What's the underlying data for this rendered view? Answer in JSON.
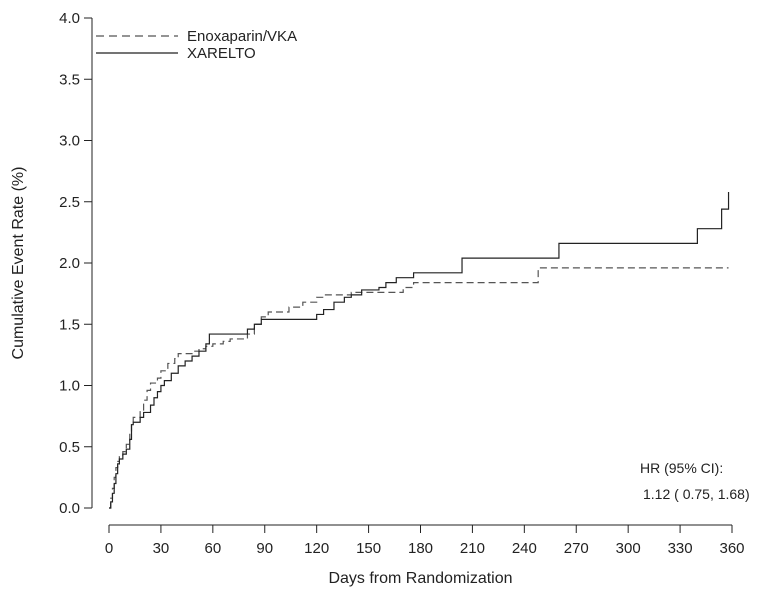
{
  "chart_data": {
    "type": "line",
    "xlabel": "Days from Randomization",
    "ylabel": "Cumulative Event Rate (%)",
    "xlim": [
      0,
      360
    ],
    "ylim": [
      0,
      4.0
    ],
    "xticks": [
      0,
      30,
      60,
      90,
      120,
      150,
      180,
      210,
      240,
      270,
      300,
      330,
      360
    ],
    "yticks": [
      0.0,
      0.5,
      1.0,
      1.5,
      2.0,
      2.5,
      3.0,
      3.5,
      4.0
    ],
    "ytick_labels": [
      "0.0",
      "0.5",
      "1.0",
      "1.5",
      "2.0",
      "2.5",
      "3.0",
      "3.5",
      "4.0"
    ],
    "grid": false,
    "legend_position": "top-left",
    "step_lines": true,
    "series": [
      {
        "name": "Enoxaparin/VKA",
        "line_style": "dashed",
        "color": "#555555",
        "points": [
          [
            0,
            0
          ],
          [
            1,
            0.08
          ],
          [
            2,
            0.16
          ],
          [
            3,
            0.25
          ],
          [
            4,
            0.33
          ],
          [
            5,
            0.38
          ],
          [
            6,
            0.42
          ],
          [
            8,
            0.46
          ],
          [
            10,
            0.52
          ],
          [
            12,
            0.62
          ],
          [
            13,
            0.68
          ],
          [
            14,
            0.74
          ],
          [
            18,
            0.8
          ],
          [
            20,
            0.88
          ],
          [
            22,
            0.96
          ],
          [
            24,
            1.02
          ],
          [
            28,
            1.06
          ],
          [
            30,
            1.12
          ],
          [
            34,
            1.18
          ],
          [
            38,
            1.22
          ],
          [
            40,
            1.26
          ],
          [
            48,
            1.28
          ],
          [
            52,
            1.3
          ],
          [
            56,
            1.32
          ],
          [
            60,
            1.34
          ],
          [
            66,
            1.36
          ],
          [
            70,
            1.38
          ],
          [
            80,
            1.42
          ],
          [
            84,
            1.5
          ],
          [
            88,
            1.56
          ],
          [
            92,
            1.6
          ],
          [
            104,
            1.64
          ],
          [
            112,
            1.68
          ],
          [
            120,
            1.72
          ],
          [
            124,
            1.74
          ],
          [
            140,
            1.76
          ],
          [
            170,
            1.8
          ],
          [
            176,
            1.84
          ],
          [
            248,
            1.96
          ],
          [
            358,
            1.96
          ]
        ]
      },
      {
        "name": "XARELTO",
        "line_style": "solid",
        "color": "#222222",
        "points": [
          [
            0,
            0
          ],
          [
            1,
            0.05
          ],
          [
            2,
            0.12
          ],
          [
            3,
            0.2
          ],
          [
            4,
            0.28
          ],
          [
            5,
            0.36
          ],
          [
            6,
            0.4
          ],
          [
            8,
            0.44
          ],
          [
            10,
            0.48
          ],
          [
            12,
            0.56
          ],
          [
            13,
            0.68
          ],
          [
            14,
            0.7
          ],
          [
            18,
            0.74
          ],
          [
            20,
            0.78
          ],
          [
            24,
            0.84
          ],
          [
            26,
            0.9
          ],
          [
            28,
            0.95
          ],
          [
            30,
            1.0
          ],
          [
            32,
            1.04
          ],
          [
            36,
            1.1
          ],
          [
            40,
            1.16
          ],
          [
            44,
            1.2
          ],
          [
            48,
            1.24
          ],
          [
            52,
            1.28
          ],
          [
            56,
            1.34
          ],
          [
            58,
            1.42
          ],
          [
            80,
            1.46
          ],
          [
            84,
            1.5
          ],
          [
            88,
            1.54
          ],
          [
            120,
            1.58
          ],
          [
            124,
            1.62
          ],
          [
            130,
            1.68
          ],
          [
            136,
            1.72
          ],
          [
            140,
            1.74
          ],
          [
            146,
            1.78
          ],
          [
            156,
            1.8
          ],
          [
            160,
            1.84
          ],
          [
            166,
            1.88
          ],
          [
            176,
            1.92
          ],
          [
            204,
            2.04
          ],
          [
            260,
            2.16
          ],
          [
            340,
            2.28
          ],
          [
            354,
            2.44
          ],
          [
            358,
            2.58
          ]
        ]
      }
    ],
    "annotation": {
      "line1": "HR (95% CI):",
      "line2": "1.12 ( 0.75,  1.68)"
    }
  }
}
